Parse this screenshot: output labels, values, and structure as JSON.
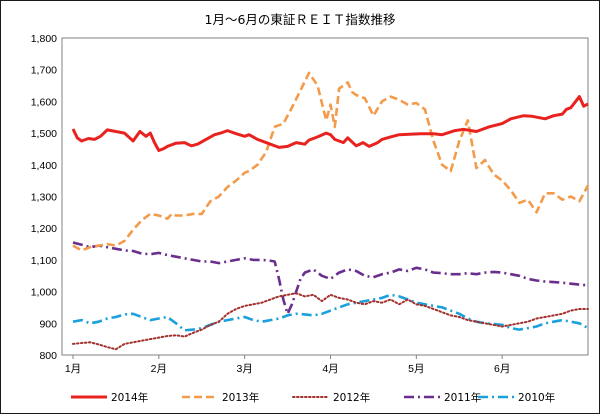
{
  "chart_data": {
    "type": "line",
    "title": "1月～6月の東証ＲＥＩＴ指数推移",
    "xlabel": "",
    "ylabel": "",
    "ylim": [
      800,
      1800
    ],
    "yticks": [
      "800",
      "900",
      "1,000",
      "1,100",
      "1,200",
      "1,300",
      "1,400",
      "1,500",
      "1,600",
      "1,700",
      "1,800"
    ],
    "xticks": [
      {
        "label": "1月",
        "x": 0
      },
      {
        "label": "2月",
        "x": 1
      },
      {
        "label": "3月",
        "x": 2
      },
      {
        "label": "4月",
        "x": 3
      },
      {
        "label": "5月",
        "x": 4
      },
      {
        "label": "6月",
        "x": 5
      }
    ],
    "xlim": [
      0,
      6
    ],
    "grid": false,
    "legend_position": "bottom",
    "series": [
      {
        "name": "2014年",
        "color": "#e8231f",
        "style": "solid",
        "x": [
          0,
          0.05,
          0.1,
          0.18,
          0.25,
          0.32,
          0.4,
          0.5,
          0.6,
          0.7,
          0.78,
          0.85,
          0.9,
          0.95,
          1.0,
          1.05,
          1.1,
          1.2,
          1.3,
          1.38,
          1.45,
          1.55,
          1.65,
          1.72,
          1.8,
          1.9,
          2.0,
          2.05,
          2.15,
          2.3,
          2.4,
          2.5,
          2.6,
          2.7,
          2.75,
          2.85,
          2.95,
          3.0,
          3.05,
          3.15,
          3.2,
          3.3,
          3.38,
          3.45,
          3.55,
          3.6,
          3.7,
          3.8,
          3.95,
          4.05,
          4.2,
          4.3,
          4.45,
          4.55,
          4.7,
          4.85,
          5.0,
          5.1,
          5.25,
          5.35,
          5.5,
          5.6,
          5.7,
          5.75,
          5.8,
          5.9,
          5.95,
          6.0
        ],
        "values": [
          1513,
          1485,
          1475,
          1483,
          1480,
          1490,
          1510,
          1505,
          1500,
          1475,
          1505,
          1490,
          1500,
          1470,
          1445,
          1450,
          1458,
          1468,
          1470,
          1460,
          1465,
          1480,
          1495,
          1500,
          1508,
          1498,
          1490,
          1495,
          1480,
          1465,
          1455,
          1458,
          1470,
          1465,
          1478,
          1488,
          1500,
          1495,
          1480,
          1470,
          1485,
          1460,
          1470,
          1458,
          1470,
          1480,
          1488,
          1495,
          1497,
          1498,
          1498,
          1495,
          1508,
          1512,
          1505,
          1520,
          1530,
          1545,
          1555,
          1553,
          1545,
          1555,
          1560,
          1575,
          1580,
          1615,
          1585,
          1592
        ]
      },
      {
        "name": "2013年",
        "color": "#f39b4a",
        "style": "dashed",
        "x": [
          0,
          0.1,
          0.2,
          0.3,
          0.4,
          0.5,
          0.6,
          0.7,
          0.8,
          0.9,
          1.0,
          1.1,
          1.15,
          1.2,
          1.3,
          1.4,
          1.5,
          1.6,
          1.7,
          1.8,
          1.9,
          2.0,
          2.05,
          2.15,
          2.25,
          2.35,
          2.45,
          2.55,
          2.65,
          2.75,
          2.85,
          2.95,
          3.0,
          3.05,
          3.1,
          3.2,
          3.25,
          3.3,
          3.4,
          3.5,
          3.6,
          3.7,
          3.8,
          3.9,
          4.0,
          4.1,
          4.2,
          4.3,
          4.4,
          4.5,
          4.6,
          4.7,
          4.8,
          4.9,
          5.0,
          5.1,
          5.2,
          5.3,
          5.4,
          5.5,
          5.6,
          5.7,
          5.8,
          5.9,
          6.0
        ],
        "values": [
          1145,
          1130,
          1140,
          1145,
          1150,
          1145,
          1160,
          1195,
          1225,
          1245,
          1240,
          1230,
          1245,
          1240,
          1240,
          1245,
          1245,
          1285,
          1300,
          1330,
          1350,
          1375,
          1380,
          1400,
          1440,
          1520,
          1530,
          1580,
          1635,
          1690,
          1650,
          1540,
          1590,
          1520,
          1640,
          1660,
          1630,
          1620,
          1610,
          1555,
          1600,
          1615,
          1605,
          1590,
          1595,
          1575,
          1475,
          1400,
          1380,
          1475,
          1540,
          1390,
          1415,
          1370,
          1350,
          1320,
          1280,
          1290,
          1250,
          1310,
          1310,
          1290,
          1300,
          1285,
          1335
        ]
      },
      {
        "name": "2012年",
        "color": "#a0312d",
        "style": "dotted",
        "x": [
          0,
          0.1,
          0.2,
          0.3,
          0.4,
          0.5,
          0.6,
          0.7,
          0.8,
          0.9,
          1.0,
          1.1,
          1.2,
          1.3,
          1.4,
          1.5,
          1.6,
          1.7,
          1.8,
          1.9,
          2.0,
          2.1,
          2.2,
          2.3,
          2.4,
          2.5,
          2.6,
          2.7,
          2.8,
          2.9,
          3.0,
          3.1,
          3.2,
          3.3,
          3.4,
          3.5,
          3.6,
          3.7,
          3.8,
          3.9,
          4.0,
          4.1,
          4.2,
          4.3,
          4.4,
          4.5,
          4.6,
          4.7,
          4.8,
          4.9,
          5.0,
          5.1,
          5.2,
          5.3,
          5.4,
          5.5,
          5.6,
          5.7,
          5.8,
          5.9,
          6.0
        ],
        "values": [
          835,
          838,
          840,
          833,
          825,
          818,
          835,
          840,
          845,
          850,
          855,
          860,
          862,
          858,
          870,
          880,
          895,
          905,
          930,
          945,
          955,
          960,
          965,
          975,
          985,
          990,
          995,
          985,
          990,
          970,
          990,
          980,
          975,
          965,
          960,
          970,
          965,
          975,
          960,
          975,
          960,
          955,
          945,
          935,
          925,
          920,
          910,
          905,
          900,
          895,
          890,
          895,
          900,
          905,
          915,
          920,
          925,
          930,
          940,
          945,
          945
        ]
      },
      {
        "name": "2011年",
        "color": "#6a2e8e",
        "style": "dashdot",
        "x": [
          0,
          0.1,
          0.2,
          0.3,
          0.4,
          0.5,
          0.6,
          0.7,
          0.8,
          0.9,
          1.0,
          1.1,
          1.2,
          1.3,
          1.4,
          1.5,
          1.6,
          1.7,
          1.8,
          1.9,
          2.0,
          2.1,
          2.2,
          2.28,
          2.35,
          2.4,
          2.45,
          2.5,
          2.55,
          2.6,
          2.65,
          2.7,
          2.8,
          2.9,
          3.0,
          3.1,
          3.2,
          3.3,
          3.4,
          3.5,
          3.6,
          3.7,
          3.8,
          3.9,
          4.0,
          4.1,
          4.2,
          4.3,
          4.4,
          4.5,
          4.6,
          4.7,
          4.8,
          4.9,
          5.0,
          5.1,
          5.2,
          5.3,
          5.4,
          5.5,
          5.6,
          5.7,
          5.8,
          5.9,
          6.0
        ],
        "values": [
          1155,
          1148,
          1140,
          1145,
          1140,
          1135,
          1130,
          1128,
          1120,
          1118,
          1122,
          1115,
          1110,
          1105,
          1100,
          1095,
          1095,
          1090,
          1095,
          1100,
          1105,
          1100,
          1100,
          1098,
          1095,
          1040,
          975,
          930,
          960,
          1000,
          1040,
          1060,
          1070,
          1050,
          1040,
          1060,
          1070,
          1065,
          1050,
          1045,
          1055,
          1060,
          1070,
          1065,
          1075,
          1070,
          1060,
          1058,
          1055,
          1055,
          1058,
          1055,
          1060,
          1062,
          1060,
          1055,
          1050,
          1040,
          1035,
          1032,
          1030,
          1028,
          1025,
          1022,
          1020
        ]
      },
      {
        "name": "2010年",
        "color": "#1aa0dc",
        "style": "dashdot",
        "x": [
          0,
          0.1,
          0.2,
          0.3,
          0.4,
          0.5,
          0.6,
          0.7,
          0.8,
          0.9,
          1.0,
          1.1,
          1.2,
          1.3,
          1.4,
          1.5,
          1.6,
          1.7,
          1.8,
          1.9,
          2.0,
          2.1,
          2.2,
          2.3,
          2.4,
          2.5,
          2.6,
          2.7,
          2.8,
          2.9,
          3.0,
          3.1,
          3.2,
          3.3,
          3.4,
          3.5,
          3.6,
          3.7,
          3.8,
          3.9,
          4.0,
          4.1,
          4.2,
          4.3,
          4.4,
          4.5,
          4.6,
          4.7,
          4.8,
          4.9,
          5.0,
          5.1,
          5.2,
          5.3,
          5.4,
          5.5,
          5.6,
          5.7,
          5.8,
          5.9,
          6.0
        ],
        "values": [
          905,
          910,
          900,
          905,
          915,
          920,
          928,
          930,
          920,
          910,
          915,
          920,
          900,
          878,
          880,
          885,
          895,
          905,
          910,
          915,
          920,
          910,
          905,
          910,
          915,
          925,
          930,
          928,
          925,
          930,
          940,
          950,
          960,
          965,
          970,
          975,
          980,
          990,
          985,
          975,
          965,
          960,
          955,
          950,
          940,
          930,
          915,
          905,
          900,
          898,
          895,
          885,
          880,
          885,
          890,
          900,
          905,
          910,
          905,
          900,
          885
        ]
      }
    ]
  }
}
